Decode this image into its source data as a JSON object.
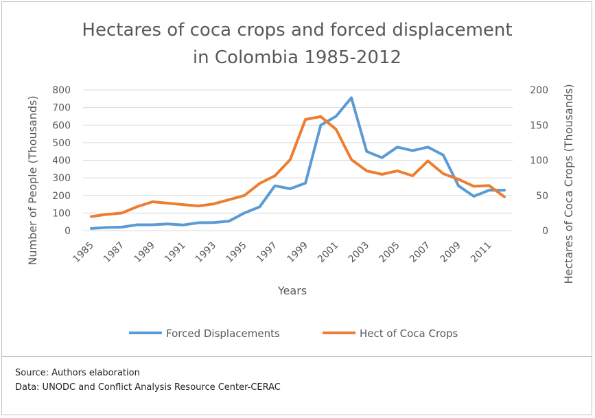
{
  "chart_data": {
    "type": "line",
    "title_line1": "Hectares of coca crops and forced displacement",
    "title_line2": "in Colombia 1985-2012",
    "xlabel": "Years",
    "ylabel_left": "Number of People (Thousands)",
    "ylabel_right": "Hectares of Coca Crops (Thousands)",
    "ylim_left": [
      0,
      800
    ],
    "ylim_right": [
      0,
      200
    ],
    "yticks_left": [
      "0",
      "100",
      "200",
      "300",
      "400",
      "500",
      "600",
      "700",
      "800"
    ],
    "yticks_right": [
      "0",
      "50",
      "100",
      "150",
      "200"
    ],
    "x": [
      1985,
      1986,
      1987,
      1988,
      1989,
      1990,
      1991,
      1992,
      1993,
      1994,
      1995,
      1996,
      1997,
      1998,
      1999,
      2000,
      2001,
      2002,
      2003,
      2004,
      2005,
      2006,
      2007,
      2008,
      2009,
      2010,
      2011,
      2012
    ],
    "xtick_labels": [
      "1985",
      "1987",
      "1989",
      "1991",
      "1993",
      "1995",
      "1997",
      "1999",
      "2001",
      "2003",
      "2005",
      "2007",
      "2009",
      "2011"
    ],
    "grid": true,
    "legend_position": "bottom",
    "series": [
      {
        "name": "Forced Displacements",
        "axis": "left",
        "color": "#5B9BD5",
        "values": [
          12,
          18,
          20,
          33,
          33,
          38,
          32,
          45,
          46,
          54,
          100,
          135,
          255,
          238,
          270,
          600,
          650,
          755,
          450,
          415,
          475,
          455,
          475,
          430,
          255,
          195,
          230,
          230
        ]
      },
      {
        "name": "Hect of Coca Crops",
        "axis": "right",
        "color": "#ED7D31",
        "values": [
          20,
          23,
          25,
          34,
          41,
          39,
          37,
          35,
          38,
          44,
          50,
          67,
          78,
          101,
          158,
          162,
          144,
          101,
          85,
          80,
          85,
          78,
          99,
          81,
          73,
          63,
          64,
          48
        ]
      }
    ]
  },
  "footer": {
    "source": "Source: Authors elaboration",
    "data": "Data:  UNODC and Conflict Analysis Resource Center-CERAC"
  }
}
